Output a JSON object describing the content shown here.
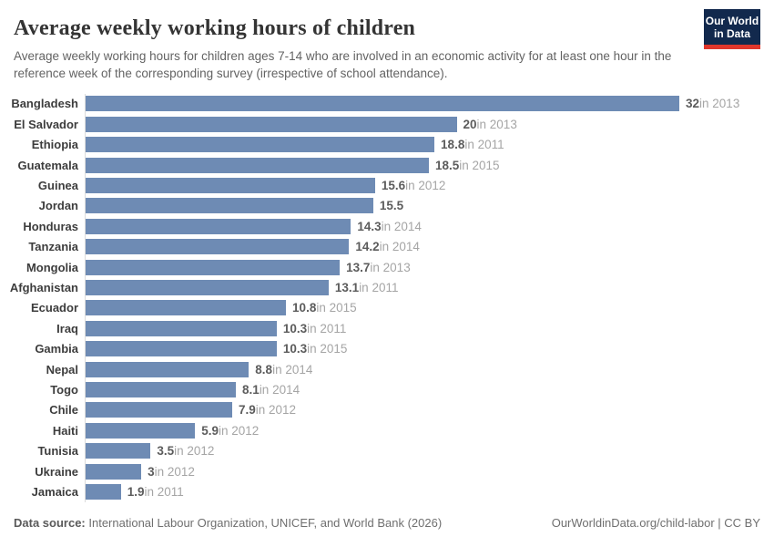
{
  "header": {
    "title": "Average weekly working hours of children",
    "subtitle": "Average weekly working hours for children ages 7-14 who are involved in an economic activity for at least one hour in the reference week of the corresponding survey (irrespective of school attendance).",
    "logo": {
      "line1": "Our World",
      "line2": "in Data",
      "bg_color": "#12294d",
      "accent_color": "#e0362b"
    }
  },
  "chart_data": {
    "type": "bar",
    "orientation": "horizontal",
    "title": "Average weekly working hours of children",
    "xlabel": "",
    "ylabel": "",
    "xlim": [
      0,
      32
    ],
    "grid": false,
    "bar_color": "#6e8bb4",
    "axis_line_color": "#dcdcdc",
    "entities": [
      {
        "label": "Bangladesh",
        "value": 32,
        "value_display": "32",
        "year_label": "in 2013"
      },
      {
        "label": "El Salvador",
        "value": 20,
        "value_display": "20",
        "year_label": "in 2013"
      },
      {
        "label": "Ethiopia",
        "value": 18.8,
        "value_display": "18.8",
        "year_label": "in 2011"
      },
      {
        "label": "Guatemala",
        "value": 18.5,
        "value_display": "18.5",
        "year_label": "in 2015"
      },
      {
        "label": "Guinea",
        "value": 15.6,
        "value_display": "15.6",
        "year_label": "in 2012"
      },
      {
        "label": "Jordan",
        "value": 15.5,
        "value_display": "15.5",
        "year_label": ""
      },
      {
        "label": "Honduras",
        "value": 14.3,
        "value_display": "14.3",
        "year_label": "in 2014"
      },
      {
        "label": "Tanzania",
        "value": 14.2,
        "value_display": "14.2",
        "year_label": "in 2014"
      },
      {
        "label": "Mongolia",
        "value": 13.7,
        "value_display": "13.7",
        "year_label": "in 2013"
      },
      {
        "label": "Afghanistan",
        "value": 13.1,
        "value_display": "13.1",
        "year_label": "in 2011"
      },
      {
        "label": "Ecuador",
        "value": 10.8,
        "value_display": "10.8",
        "year_label": "in 2015"
      },
      {
        "label": "Iraq",
        "value": 10.3,
        "value_display": "10.3",
        "year_label": "in 2011"
      },
      {
        "label": "Gambia",
        "value": 10.3,
        "value_display": "10.3",
        "year_label": "in 2015"
      },
      {
        "label": "Nepal",
        "value": 8.8,
        "value_display": "8.8",
        "year_label": "in 2014"
      },
      {
        "label": "Togo",
        "value": 8.1,
        "value_display": "8.1",
        "year_label": "in 2014"
      },
      {
        "label": "Chile",
        "value": 7.9,
        "value_display": "7.9",
        "year_label": "in 2012"
      },
      {
        "label": "Haiti",
        "value": 5.9,
        "value_display": "5.9",
        "year_label": "in 2012"
      },
      {
        "label": "Tunisia",
        "value": 3.5,
        "value_display": "3.5",
        "year_label": "in 2012"
      },
      {
        "label": "Ukraine",
        "value": 3,
        "value_display": "3",
        "year_label": "in 2012"
      },
      {
        "label": "Jamaica",
        "value": 1.9,
        "value_display": "1.9",
        "year_label": "in 2011"
      }
    ]
  },
  "footer": {
    "source_label": "Data source:",
    "source_text": " International Labour Organization, UNICEF, and World Bank (2026)",
    "link_text": "OurWorldinData.org/child-labor | CC BY"
  }
}
